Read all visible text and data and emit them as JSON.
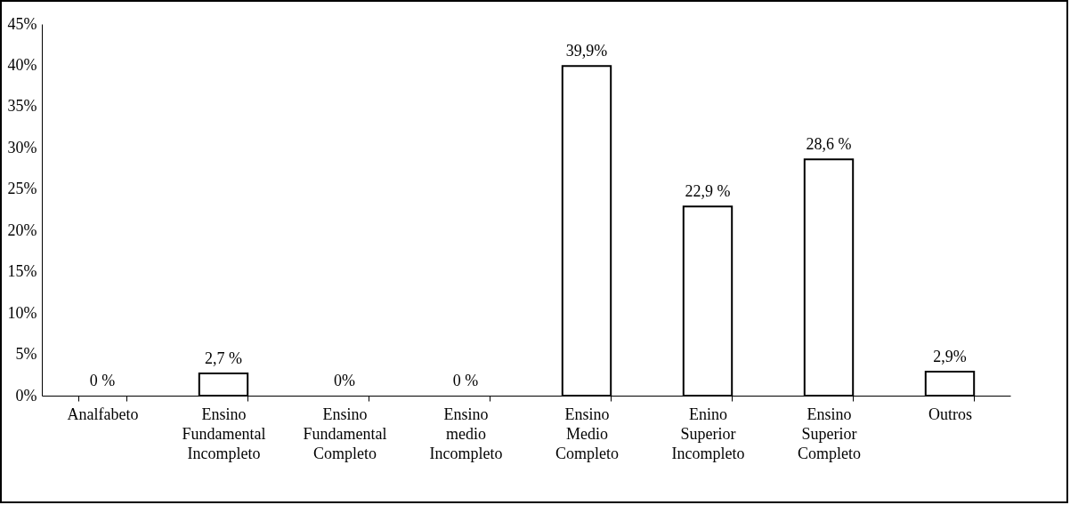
{
  "chart_data": {
    "type": "bar",
    "categories": [
      "Analfabeto",
      "Ensino Fundamental Incompleto",
      "Ensino Fundamental Completo",
      "Ensino medio Incompleto",
      "Ensino Medio Completo",
      "Enino Superior Incompleto",
      "Ensino Superior Completo",
      "Outros"
    ],
    "values": [
      0,
      2.7,
      0,
      0,
      39.9,
      22.9,
      28.6,
      2.9
    ],
    "value_labels": [
      "0 %",
      "2,7 %",
      "0%",
      "0 %",
      "39,9%",
      "22,9 %",
      "28,6 %",
      "2,9%"
    ],
    "color": "#ffffff",
    "ylim": [
      0,
      45
    ],
    "yticks": [
      {
        "value": 0,
        "label": "0%"
      },
      {
        "value": 5,
        "label": "5%"
      },
      {
        "value": 10,
        "label": "10%"
      },
      {
        "value": 15,
        "label": "15%"
      },
      {
        "value": 20,
        "label": "20%"
      },
      {
        "value": 25,
        "label": "25%"
      },
      {
        "value": 30,
        "label": "30%"
      },
      {
        "value": 35,
        "label": "35%"
      },
      {
        "value": 40,
        "label": "40%"
      },
      {
        "value": 45,
        "label": "45%"
      }
    ],
    "grid": false
  }
}
